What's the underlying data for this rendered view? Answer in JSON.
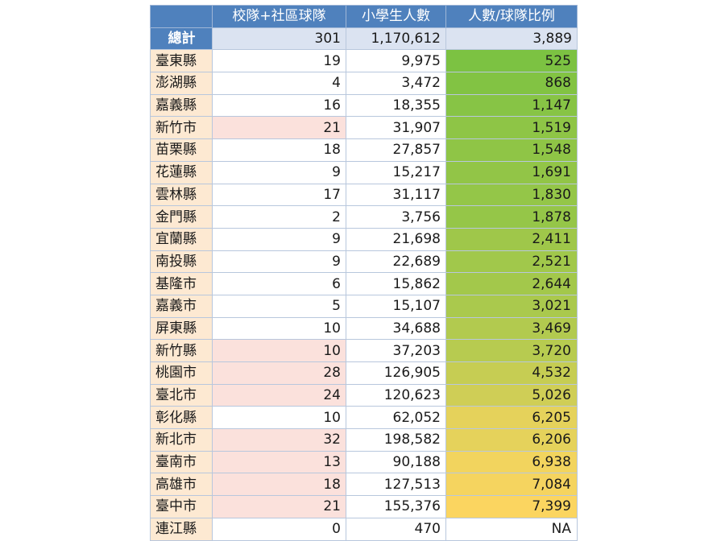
{
  "table": {
    "header": [
      "",
      "校隊+社區球隊",
      "小學生人數",
      "人數/球隊比例"
    ],
    "total": {
      "name": "總計",
      "teams": "301",
      "students": "1,170,612",
      "ratio": "3,889"
    },
    "rows": [
      {
        "name": "臺東縣",
        "teams": "19",
        "students": "9,975",
        "ratio": "525",
        "hl": false
      },
      {
        "name": "澎湖縣",
        "teams": "4",
        "students": "3,472",
        "ratio": "868",
        "hl": false
      },
      {
        "name": "嘉義縣",
        "teams": "16",
        "students": "18,355",
        "ratio": "1,147",
        "hl": false
      },
      {
        "name": "新竹市",
        "teams": "21",
        "students": "31,907",
        "ratio": "1,519",
        "hl": true
      },
      {
        "name": "苗栗縣",
        "teams": "18",
        "students": "27,857",
        "ratio": "1,548",
        "hl": false
      },
      {
        "name": "花蓮縣",
        "teams": "9",
        "students": "15,217",
        "ratio": "1,691",
        "hl": false
      },
      {
        "name": "雲林縣",
        "teams": "17",
        "students": "31,117",
        "ratio": "1,830",
        "hl": false
      },
      {
        "name": "金門縣",
        "teams": "2",
        "students": "3,756",
        "ratio": "1,878",
        "hl": false
      },
      {
        "name": "宜蘭縣",
        "teams": "9",
        "students": "21,698",
        "ratio": "2,411",
        "hl": false
      },
      {
        "name": "南投縣",
        "teams": "9",
        "students": "22,689",
        "ratio": "2,521",
        "hl": false
      },
      {
        "name": "基隆市",
        "teams": "6",
        "students": "15,862",
        "ratio": "2,644",
        "hl": false
      },
      {
        "name": "嘉義市",
        "teams": "5",
        "students": "15,107",
        "ratio": "3,021",
        "hl": false
      },
      {
        "name": "屏東縣",
        "teams": "10",
        "students": "34,688",
        "ratio": "3,469",
        "hl": false
      },
      {
        "name": "新竹縣",
        "teams": "10",
        "students": "37,203",
        "ratio": "3,720",
        "hl": true
      },
      {
        "name": "桃園市",
        "teams": "28",
        "students": "126,905",
        "ratio": "4,532",
        "hl": true
      },
      {
        "name": "臺北市",
        "teams": "24",
        "students": "120,623",
        "ratio": "5,026",
        "hl": true
      },
      {
        "name": "彰化縣",
        "teams": "10",
        "students": "62,052",
        "ratio": "6,205",
        "hl": false
      },
      {
        "name": "新北市",
        "teams": "32",
        "students": "198,582",
        "ratio": "6,206",
        "hl": true
      },
      {
        "name": "臺南市",
        "teams": "13",
        "students": "90,188",
        "ratio": "6,938",
        "hl": true
      },
      {
        "name": "高雄市",
        "teams": "18",
        "students": "127,513",
        "ratio": "7,084",
        "hl": true
      },
      {
        "name": "臺中市",
        "teams": "21",
        "students": "155,376",
        "ratio": "7,399",
        "hl": true
      },
      {
        "name": "連江縣",
        "teams": "0",
        "students": "470",
        "ratio": "NA",
        "hl": false
      }
    ]
  },
  "colors": {
    "header_bg": "#4f81bd",
    "total_bg": "#dbe3f1",
    "name_bg": "#fde9d2",
    "teams_highlight": "#fbe1dc",
    "scale_low": "#7cc242",
    "scale_high": "#fbd560"
  }
}
